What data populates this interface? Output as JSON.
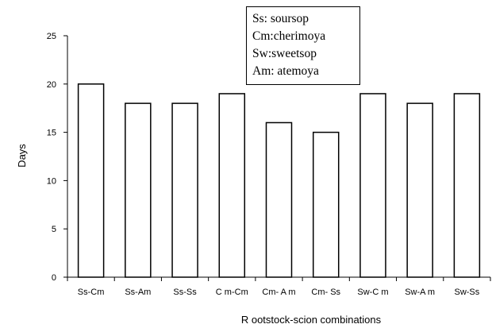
{
  "chart_data": {
    "type": "bar",
    "categories": [
      "Ss-Cm",
      "Ss-Am",
      "Ss-Ss",
      "C m-Cm",
      "Cm- A m",
      "Cm- Ss",
      "Sw-C m",
      "Sw-A m",
      "Sw-Ss"
    ],
    "values": [
      20,
      18,
      18,
      19,
      16,
      15,
      19,
      18,
      19
    ],
    "xlabel": "R ootstock-scion combinations",
    "ylabel": "Days",
    "ylim": [
      0,
      25
    ],
    "yticks": [
      0,
      5,
      10,
      15,
      20,
      25
    ],
    "grid": false,
    "bar_fill": "#ffffff",
    "bar_stroke": "#000000",
    "legend_placement": "top-center",
    "legend": [
      "Ss: soursop",
      "Cm:cherimoya",
      "Sw:sweetsop",
      "Am: atemoya"
    ]
  }
}
